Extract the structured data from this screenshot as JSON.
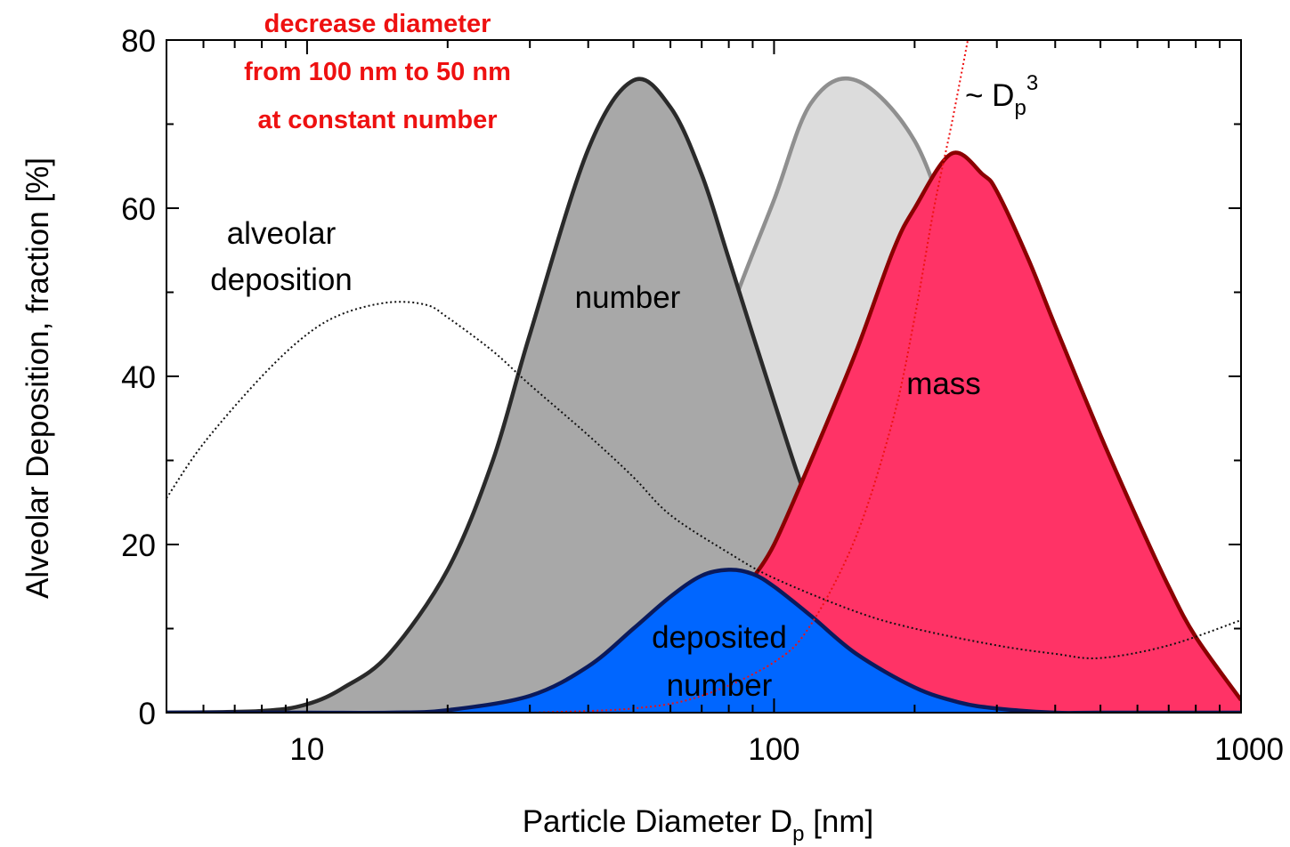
{
  "chart_data": {
    "type": "area",
    "x_scale": "log",
    "xlim": [
      5,
      1000
    ],
    "ylim": [
      0,
      80
    ],
    "grid": false,
    "xlabel_main": "Particle Diameter D",
    "xlabel_sub": "p",
    "xlabel_unit": " [nm]",
    "ylabel": "Alveolar Deposition, fraction [%]",
    "x_ticks": [
      {
        "value": 10,
        "label": "10"
      },
      {
        "value": 100,
        "label": "100"
      },
      {
        "value": 1000,
        "label": "1000"
      }
    ],
    "y_ticks": [
      {
        "value": 0,
        "label": "0"
      },
      {
        "value": 20,
        "label": "20"
      },
      {
        "value": 40,
        "label": "40"
      },
      {
        "value": 60,
        "label": "60"
      },
      {
        "value": 80,
        "label": "80"
      }
    ],
    "annotation_lines": [
      "decrease diameter",
      "from 100 nm to 50 nm",
      "at constant number"
    ],
    "annotation_color": "#ee1111",
    "series": [
      {
        "key": "number_100",
        "name": "",
        "fill": "#dcdcdc",
        "stroke": "#8f8f8f",
        "x": [
          5,
          8,
          10,
          15,
          20,
          30,
          40,
          50,
          60,
          70,
          80,
          100,
          120,
          150,
          200,
          250,
          300,
          400,
          500,
          700,
          1000
        ],
        "y": [
          0,
          0,
          0,
          0,
          0.1,
          1.5,
          6,
          14,
          24,
          35,
          47,
          61,
          72.5,
          75.2,
          68,
          54,
          45,
          30,
          21,
          8,
          1
        ]
      },
      {
        "key": "number_50",
        "name": "number",
        "fill": "#a8a8a8",
        "stroke": "#2a2a2a",
        "x": [
          5,
          8,
          10,
          12,
          15,
          20,
          25,
          30,
          40,
          50,
          60,
          70,
          80,
          100,
          120,
          150,
          200,
          300,
          500,
          1000
        ],
        "y": [
          0,
          0.2,
          1,
          3,
          7,
          17,
          30,
          45,
          67,
          75.2,
          72,
          64,
          54,
          37,
          24,
          12,
          4,
          0.5,
          0,
          0
        ]
      },
      {
        "key": "mass",
        "name": "mass",
        "fill": "#ff3366",
        "stroke": "#8b0000",
        "x": [
          90,
          100,
          120,
          150,
          180,
          200,
          240,
          280,
          300,
          350,
          400,
          500,
          600,
          700,
          800,
          1000
        ],
        "y": [
          16,
          20,
          30,
          43,
          55,
          60,
          66.5,
          64,
          62,
          54,
          46,
          33,
          23,
          15,
          9,
          1.5
        ]
      },
      {
        "key": "deposited",
        "name": "deposited number",
        "fill": "#0066ff",
        "stroke": "#0a1a5c",
        "x": [
          5,
          10,
          15,
          20,
          30,
          40,
          50,
          60,
          70,
          80,
          90,
          100,
          120,
          150,
          200,
          250,
          300,
          400,
          500,
          1000
        ],
        "y": [
          0,
          0,
          0,
          0.3,
          2,
          5.5,
          10,
          13.8,
          16.3,
          17,
          16.5,
          15,
          11.5,
          7,
          3,
          1.2,
          0.5,
          0,
          0,
          0
        ]
      },
      {
        "key": "alveolar",
        "name": "alveolar deposition",
        "style": "dotted",
        "stroke": "#111111",
        "x": [
          5,
          6,
          8,
          10,
          12,
          15,
          18,
          20,
          25,
          30,
          40,
          50,
          60,
          80,
          100,
          150,
          200,
          300,
          400,
          500,
          700,
          1000
        ],
        "y": [
          25.5,
          32,
          40,
          45,
          47.5,
          48.8,
          48.5,
          47,
          43,
          39,
          33,
          28,
          23.5,
          19,
          16,
          12,
          10,
          8,
          7,
          6.5,
          8,
          11
        ]
      },
      {
        "key": "dp3",
        "name": "~ D",
        "name_sub": "p",
        "name_sup": "3",
        "style": "dotted",
        "stroke": "#ee1111",
        "x": [
          30,
          50,
          70,
          100,
          120,
          150,
          180,
          200,
          220,
          240,
          260
        ],
        "y": [
          0,
          0.5,
          2,
          6,
          10.5,
          21,
          35,
          47,
          60,
          70,
          80
        ]
      }
    ],
    "labels": {
      "alveolar_line1": "alveolar",
      "alveolar_line2": "deposition",
      "number": "number",
      "mass": "mass",
      "deposited_line1": "deposited",
      "deposited_line2": "number"
    }
  }
}
